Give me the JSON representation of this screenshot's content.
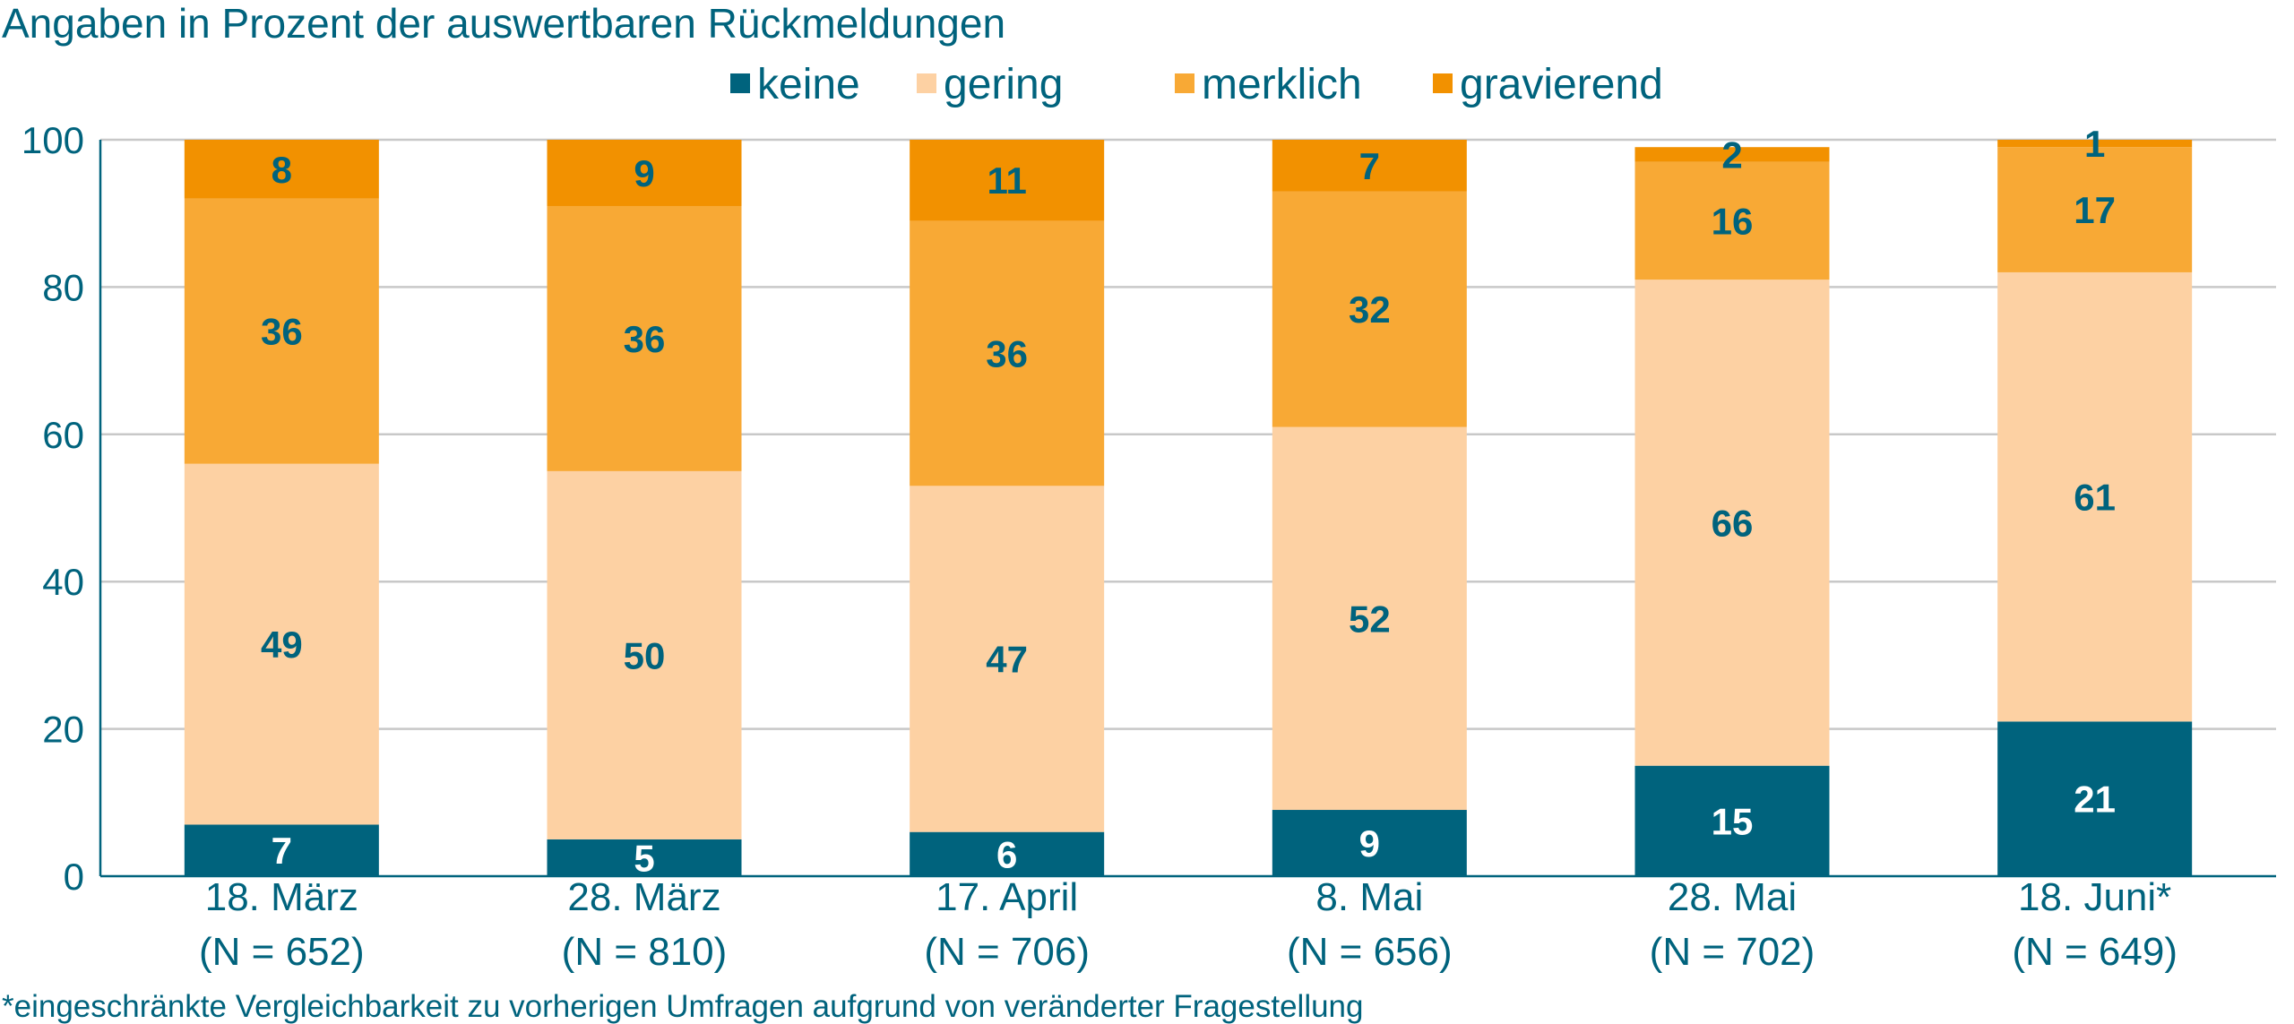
{
  "chart_data": {
    "type": "bar",
    "stacked": true,
    "title": "Angaben in Prozent der auswertbaren Rückmeldungen",
    "categories": [
      "18. März",
      "28. März",
      "17. April",
      "8. Mai",
      "28. Mai",
      "18. Juni*"
    ],
    "category_n": [
      "(N = 652)",
      "(N = 810)",
      "(N = 706)",
      "(N = 656)",
      "(N = 702)",
      "(N = 649)"
    ],
    "series": [
      {
        "name": "keine",
        "color": "#00637d",
        "label_color": "#ffffff",
        "values": [
          7,
          5,
          6,
          9,
          15,
          21
        ]
      },
      {
        "name": "gering",
        "color": "#fdd1a3",
        "label_color": "#00637d",
        "values": [
          49,
          50,
          47,
          52,
          66,
          61
        ]
      },
      {
        "name": "merklich",
        "color": "#f8a935",
        "label_color": "#00637d",
        "values": [
          36,
          36,
          36,
          32,
          16,
          17
        ]
      },
      {
        "name": "gravierend",
        "color": "#f29100",
        "label_color": "#00637d",
        "values": [
          8,
          9,
          11,
          7,
          2,
          1
        ]
      }
    ],
    "ylim": [
      0,
      100
    ],
    "yticks": [
      0,
      20,
      40,
      60,
      80,
      100
    ],
    "grid": true,
    "legend_position": "top",
    "footnote": "*eingeschränkte Vergleichbarkeit zu vorherigen Umfragen aufgrund von veränderter Fragestellung",
    "text_color": "#00637d"
  }
}
